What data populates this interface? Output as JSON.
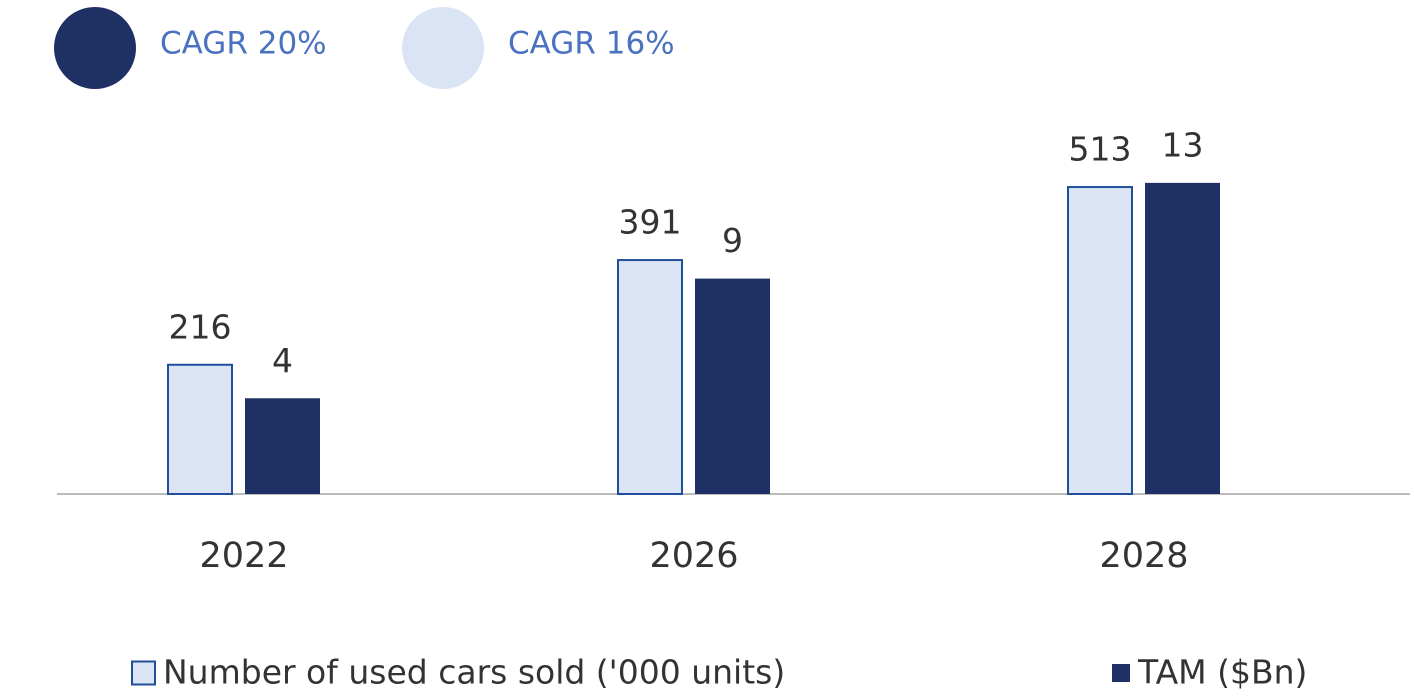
{
  "chart_data": {
    "type": "bar",
    "categories": [
      "2022",
      "2026",
      "2028"
    ],
    "series": [
      {
        "name": "Number of used cars sold ('000 units)",
        "color": "#dbe4f5",
        "values": [
          216,
          391,
          513
        ]
      },
      {
        "name": "TAM ($Bn)",
        "color": "#1f3064",
        "axis": "y2",
        "values": [
          4,
          9,
          13
        ]
      }
    ],
    "ylim": [
      0,
      600
    ],
    "y2lim": [
      0,
      15
    ],
    "annotations": [
      {
        "text": "CAGR 20%",
        "color": "#1f3064"
      },
      {
        "text": "CAGR 16%",
        "color": "#dbe4f5"
      }
    ]
  }
}
